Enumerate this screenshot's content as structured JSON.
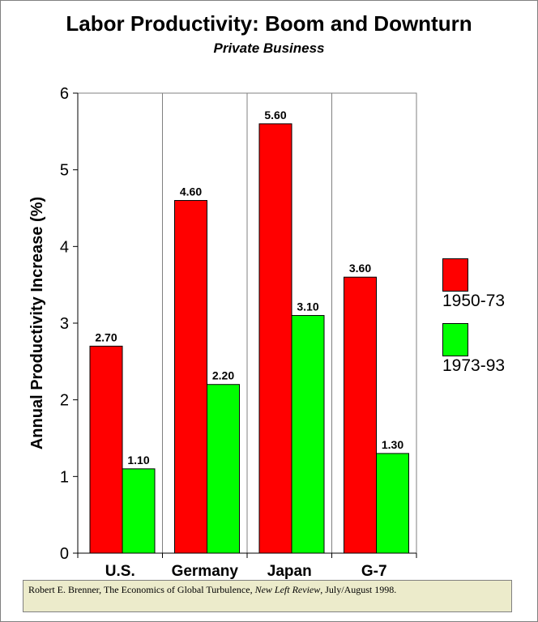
{
  "chart_data": {
    "type": "bar",
    "title": "Labor Productivity: Boom and Downturn",
    "subtitle": "Private Business",
    "ylabel": "Annual Productivity Increase (%)",
    "xlabel": "",
    "ylim": [
      0,
      6
    ],
    "yticks": [
      "0",
      "1",
      "2",
      "3",
      "4",
      "5",
      "6"
    ],
    "categories": [
      "U.S.",
      "Germany",
      "Japan",
      "G-7"
    ],
    "series": [
      {
        "name": "1950-73",
        "color": "#ff0000",
        "values": [
          2.7,
          4.6,
          5.6,
          3.6
        ],
        "labels": [
          "2.70",
          "4.60",
          "5.60",
          "3.60"
        ]
      },
      {
        "name": "1973-93",
        "color": "#00ff00",
        "values": [
          1.1,
          2.2,
          3.1,
          1.3
        ],
        "labels": [
          "1.10",
          "2.20",
          "3.10",
          "1.30"
        ]
      }
    ],
    "grid": "vertical",
    "legend_position": "right"
  },
  "source": {
    "text_before": "Robert E. Brenner, The Economics of Global Turbulence, ",
    "journal": "New Left Review",
    "text_after": ", July/August 1998."
  }
}
